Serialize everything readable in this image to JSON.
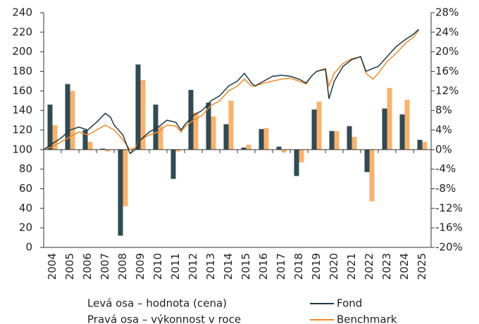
{
  "chart_data": {
    "type": "bar",
    "categories": [
      "2004",
      "2005",
      "2006",
      "2007",
      "2008",
      "2009",
      "2010",
      "2011",
      "2012",
      "2013",
      "2014",
      "2015",
      "2016",
      "2017",
      "2018",
      "2019",
      "2020",
      "2021",
      "2022",
      "2023",
      "2024",
      "2025"
    ],
    "series": [
      {
        "name": "Fond",
        "color": "#2f4b55",
        "axis": "y2",
        "values": [
          9.2,
          13.4,
          4.0,
          0.2,
          -17.6,
          17.4,
          9.2,
          -6.0,
          12.2,
          9.6,
          5.2,
          0.4,
          4.2,
          0.6,
          -5.4,
          8.2,
          3.8,
          4.8,
          -4.6,
          8.4,
          7.2,
          2.0
        ]
      },
      {
        "name": "Benchmark",
        "color": "#f9b26a",
        "axis": "y2",
        "values": [
          5.0,
          12.0,
          1.6,
          -0.4,
          -11.6,
          14.2,
          4.8,
          -0.4,
          7.6,
          6.8,
          10.0,
          1.0,
          4.4,
          -0.6,
          -2.6,
          9.8,
          3.8,
          2.6,
          -10.6,
          12.6,
          10.2,
          1.6
        ]
      }
    ],
    "lines": [
      {
        "name": "Fond",
        "color": "#1d3944",
        "x": [
          2004.0,
          2004.5,
          2005.0,
          2005.5,
          2006.0,
          2006.5,
          2007.0,
          2007.5,
          2007.8,
          2008.0,
          2008.5,
          2008.9,
          2009.2,
          2009.5,
          2010.0,
          2010.5,
          2011.0,
          2011.5,
          2011.8,
          2012.0,
          2012.5,
          2013.0,
          2013.5,
          2014.0,
          2014.5,
          2015.0,
          2015.4,
          2015.8,
          2016.0,
          2016.5,
          2017.0,
          2017.5,
          2018.0,
          2018.5,
          2018.9,
          2019.2,
          2019.5,
          2020.0,
          2020.2,
          2020.5,
          2021.0,
          2021.5,
          2022.0,
          2022.3,
          2022.7,
          2023.0,
          2023.5,
          2024.0,
          2024.5,
          2025.0,
          2025.3
        ],
        "values": [
          100,
          106,
          112,
          120,
          123,
          120,
          128,
          137,
          133,
          125,
          115,
          96,
          100,
          110,
          118,
          123,
          130,
          128,
          120,
          125,
          135,
          140,
          150,
          155,
          165,
          170,
          178,
          168,
          165,
          170,
          175,
          176,
          175,
          172,
          168,
          175,
          180,
          182,
          152,
          170,
          185,
          192,
          195,
          180,
          183,
          185,
          195,
          205,
          212,
          218,
          223
        ]
      },
      {
        "name": "Benchmark",
        "color": "#f08a24",
        "x": [
          2004.0,
          2004.5,
          2005.0,
          2005.5,
          2006.0,
          2006.5,
          2007.0,
          2007.5,
          2008.0,
          2008.5,
          2008.9,
          2009.2,
          2009.5,
          2010.0,
          2010.5,
          2011.0,
          2011.5,
          2011.8,
          2012.0,
          2012.5,
          2013.0,
          2013.5,
          2014.0,
          2014.5,
          2015.0,
          2015.4,
          2015.8,
          2016.0,
          2016.5,
          2017.0,
          2017.5,
          2018.0,
          2018.5,
          2018.9,
          2019.2,
          2019.5,
          2020.0,
          2020.2,
          2020.5,
          2021.0,
          2021.5,
          2022.0,
          2022.3,
          2022.7,
          2023.0,
          2023.5,
          2024.0,
          2024.5,
          2025.0,
          2025.3
        ],
        "values": [
          100,
          103,
          108,
          113,
          118,
          115,
          120,
          125,
          120,
          110,
          100,
          102,
          110,
          115,
          118,
          125,
          124,
          118,
          123,
          130,
          135,
          145,
          150,
          160,
          165,
          172,
          165,
          165,
          168,
          170,
          172,
          173,
          170,
          167,
          175,
          180,
          183,
          165,
          178,
          188,
          193,
          195,
          178,
          172,
          178,
          190,
          198,
          208,
          215,
          222
        ]
      }
    ],
    "xlim": [
      2004,
      2026
    ],
    "ylim": [
      0,
      240
    ],
    "yticks": [
      0,
      20,
      40,
      60,
      80,
      100,
      120,
      140,
      160,
      180,
      200,
      220,
      240
    ],
    "y2lim": [
      -20,
      28
    ],
    "y2ticks": [
      {
        "value": -20,
        "label": "-20%"
      },
      {
        "value": -16,
        "label": "-16%"
      },
      {
        "value": -12,
        "label": "-12%"
      },
      {
        "value": -8,
        "label": "-8%"
      },
      {
        "value": -4,
        "label": "-4%"
      },
      {
        "value": 0,
        "label": "0%"
      },
      {
        "value": 4,
        "label": "4%"
      },
      {
        "value": 8,
        "label": "8%"
      },
      {
        "value": 12,
        "label": "12%"
      },
      {
        "value": 16,
        "label": "16%"
      },
      {
        "value": 20,
        "label": "20%"
      },
      {
        "value": 24,
        "label": "24%"
      },
      {
        "value": 28,
        "label": "28%"
      }
    ],
    "annotations": [
      "Levá osa – hodnota (cena)",
      "Pravá osa – výkonnost v roce"
    ]
  }
}
